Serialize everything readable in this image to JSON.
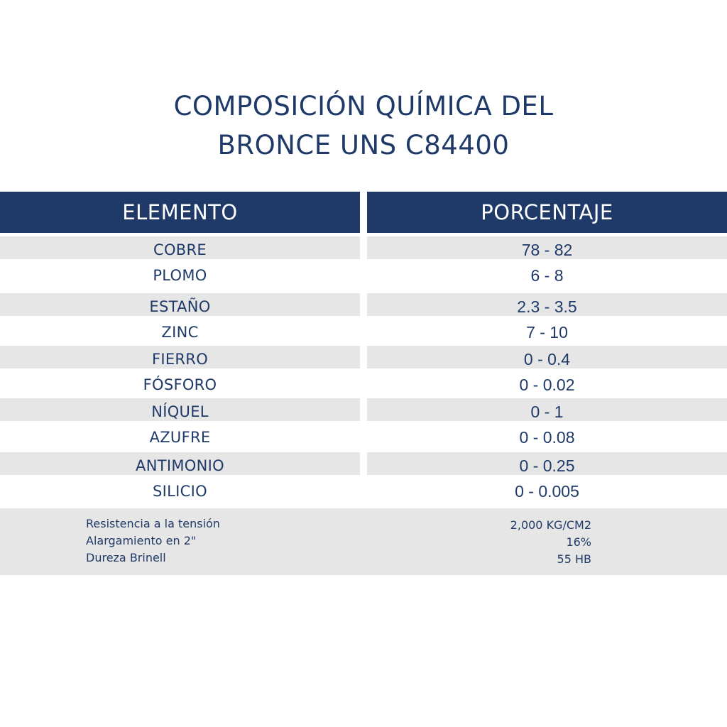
{
  "title": {
    "line1": "COMPOSICIÓN QUÍMICA DEL",
    "line2": "BRONCE UNS C84400"
  },
  "table": {
    "headers": [
      "ELEMENTO",
      "PORCENTAJE"
    ],
    "rows": [
      {
        "element": "COBRE",
        "percentage": "78 - 82"
      },
      {
        "element": "PLOMO",
        "percentage": "6 - 8"
      },
      {
        "element": "ESTAÑO",
        "percentage": "2.3 - 3.5"
      },
      {
        "element": "ZINC",
        "percentage": "7 - 10"
      },
      {
        "element": "FIERRO",
        "percentage": "0 - 0.4"
      },
      {
        "element": "FÓSFORO",
        "percentage": "0 - 0.02"
      },
      {
        "element": "NÍQUEL",
        "percentage": "0 - 1"
      },
      {
        "element": "AZUFRE",
        "percentage": "0 - 0.08"
      },
      {
        "element": "ANTIMONIO",
        "percentage": "0 - 0.25"
      },
      {
        "element": "SILICIO",
        "percentage": "0 - 0.005"
      }
    ]
  },
  "properties": [
    {
      "label": "Resistencia a la tensión",
      "value": "2,000 KG/CM2"
    },
    {
      "label": "Alargamiento en 2\"",
      "value": "16%"
    },
    {
      "label": "Dureza Brinell",
      "value": "55 HB"
    }
  ],
  "colors": {
    "navy": "#1f3a68",
    "stripe": "#e6e6e6",
    "background": "#ffffff"
  }
}
